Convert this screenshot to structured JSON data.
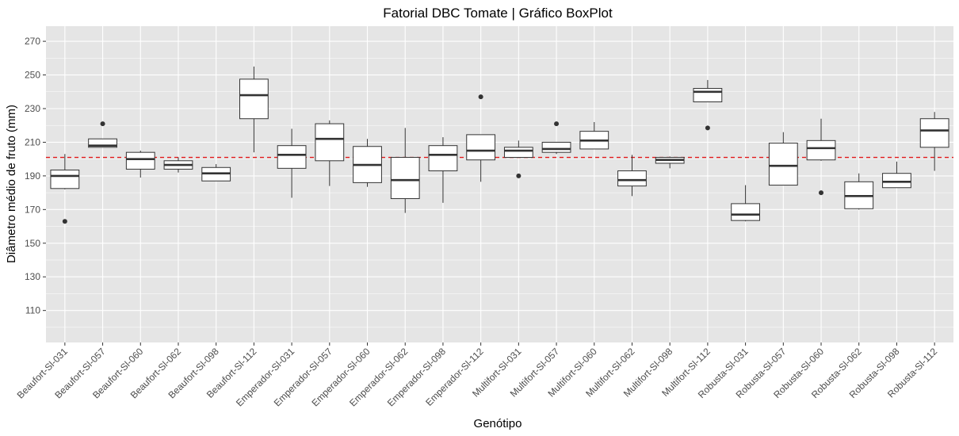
{
  "chart_data": {
    "type": "boxplot",
    "title": "Fatorial DBC Tomate | Gráfico BoxPlot",
    "xlabel": "Genótipo",
    "ylabel": "Diâmetro médio de fruto (mm)",
    "ylim": [
      91,
      279
    ],
    "yticks": [
      110,
      130,
      150,
      170,
      190,
      210,
      230,
      250,
      270
    ],
    "reference_line": {
      "value": 201,
      "style": "dashed",
      "color": "#e41a1c"
    },
    "grid": true,
    "colors": {
      "panel": "#e5e5e5",
      "grid": "#ffffff",
      "box_fill": "#ffffff",
      "box_line": "#333333"
    },
    "categories": [
      "Beaufort-Sl-031",
      "Beaufort-Sl-057",
      "Beaufort-Sl-060",
      "Beaufort-Sl-062",
      "Beaufort-Sl-098",
      "Beaufort-Sl-112",
      "Emperador-Sl-031",
      "Emperador-Sl-057",
      "Emperador-Sl-060",
      "Emperador-Sl-062",
      "Emperador-Sl-098",
      "Emperador-Sl-112",
      "Multifort-Sl-031",
      "Multifort-Sl-057",
      "Multifort-Sl-060",
      "Multifort-Sl-062",
      "Multifort-Sl-098",
      "Multifort-Sl-112",
      "Robusta-Sl-031",
      "Robusta-Sl-057",
      "Robusta-Sl-060",
      "Robusta-Sl-062",
      "Robusta-Sl-098",
      "Robusta-Sl-112"
    ],
    "boxes": [
      {
        "whisker_low": 182,
        "q1": 182.5,
        "median": 190,
        "q3": 193.5,
        "whisker_high": 203,
        "outliers": [
          163
        ]
      },
      {
        "whisker_low": 207,
        "q1": 207,
        "median": 208,
        "q3": 212,
        "whisker_high": 212,
        "outliers": [
          221
        ]
      },
      {
        "whisker_low": 189,
        "q1": 194,
        "median": 200,
        "q3": 204,
        "whisker_high": 205,
        "outliers": []
      },
      {
        "whisker_low": 192,
        "q1": 194,
        "median": 196.5,
        "q3": 199,
        "whisker_high": 201,
        "outliers": []
      },
      {
        "whisker_low": 187,
        "q1": 187,
        "median": 191.5,
        "q3": 195,
        "whisker_high": 197,
        "outliers": []
      },
      {
        "whisker_low": 204,
        "q1": 224,
        "median": 238,
        "q3": 247.5,
        "whisker_high": 255,
        "outliers": []
      },
      {
        "whisker_low": 177,
        "q1": 194.5,
        "median": 202.5,
        "q3": 208,
        "whisker_high": 218,
        "outliers": []
      },
      {
        "whisker_low": 184,
        "q1": 199,
        "median": 212,
        "q3": 221,
        "whisker_high": 223,
        "outliers": []
      },
      {
        "whisker_low": 183.5,
        "q1": 186,
        "median": 196.5,
        "q3": 207.5,
        "whisker_high": 212,
        "outliers": []
      },
      {
        "whisker_low": 168,
        "q1": 176.5,
        "median": 187.5,
        "q3": 201,
        "whisker_high": 218.5,
        "outliers": []
      },
      {
        "whisker_low": 174,
        "q1": 193,
        "median": 202.5,
        "q3": 208,
        "whisker_high": 213,
        "outliers": []
      },
      {
        "whisker_low": 186.5,
        "q1": 199.5,
        "median": 205,
        "q3": 214.5,
        "whisker_high": 214.5,
        "outliers": [
          237
        ]
      },
      {
        "whisker_low": 201,
        "q1": 201,
        "median": 205,
        "q3": 207,
        "whisker_high": 211,
        "outliers": [
          190
        ]
      },
      {
        "whisker_low": 203,
        "q1": 204,
        "median": 206,
        "q3": 210,
        "whisker_high": 210,
        "outliers": [
          221
        ]
      },
      {
        "whisker_low": 206,
        "q1": 206,
        "median": 211,
        "q3": 216.5,
        "whisker_high": 222,
        "outliers": []
      },
      {
        "whisker_low": 178,
        "q1": 184,
        "median": 187.5,
        "q3": 193,
        "whisker_high": 202.5,
        "outliers": []
      },
      {
        "whisker_low": 194.5,
        "q1": 197.5,
        "median": 199.5,
        "q3": 201,
        "whisker_high": 201.5,
        "outliers": []
      },
      {
        "whisker_low": 234,
        "q1": 234,
        "median": 240,
        "q3": 242,
        "whisker_high": 247,
        "outliers": [
          218.5
        ]
      },
      {
        "whisker_low": 163,
        "q1": 163.5,
        "median": 167,
        "q3": 173.5,
        "whisker_high": 184.5,
        "outliers": []
      },
      {
        "whisker_low": 184.5,
        "q1": 184.5,
        "median": 196,
        "q3": 209.5,
        "whisker_high": 216,
        "outliers": []
      },
      {
        "whisker_low": 199,
        "q1": 199.5,
        "median": 206.5,
        "q3": 211,
        "whisker_high": 224,
        "outliers": [
          180
        ]
      },
      {
        "whisker_low": 170,
        "q1": 170.5,
        "median": 178,
        "q3": 186.5,
        "whisker_high": 191.5,
        "outliers": []
      },
      {
        "whisker_low": 183,
        "q1": 183,
        "median": 186.5,
        "q3": 191.5,
        "whisker_high": 198.5,
        "outliers": []
      },
      {
        "whisker_low": 193,
        "q1": 207,
        "median": 217,
        "q3": 224,
        "whisker_high": 228,
        "outliers": []
      }
    ]
  }
}
